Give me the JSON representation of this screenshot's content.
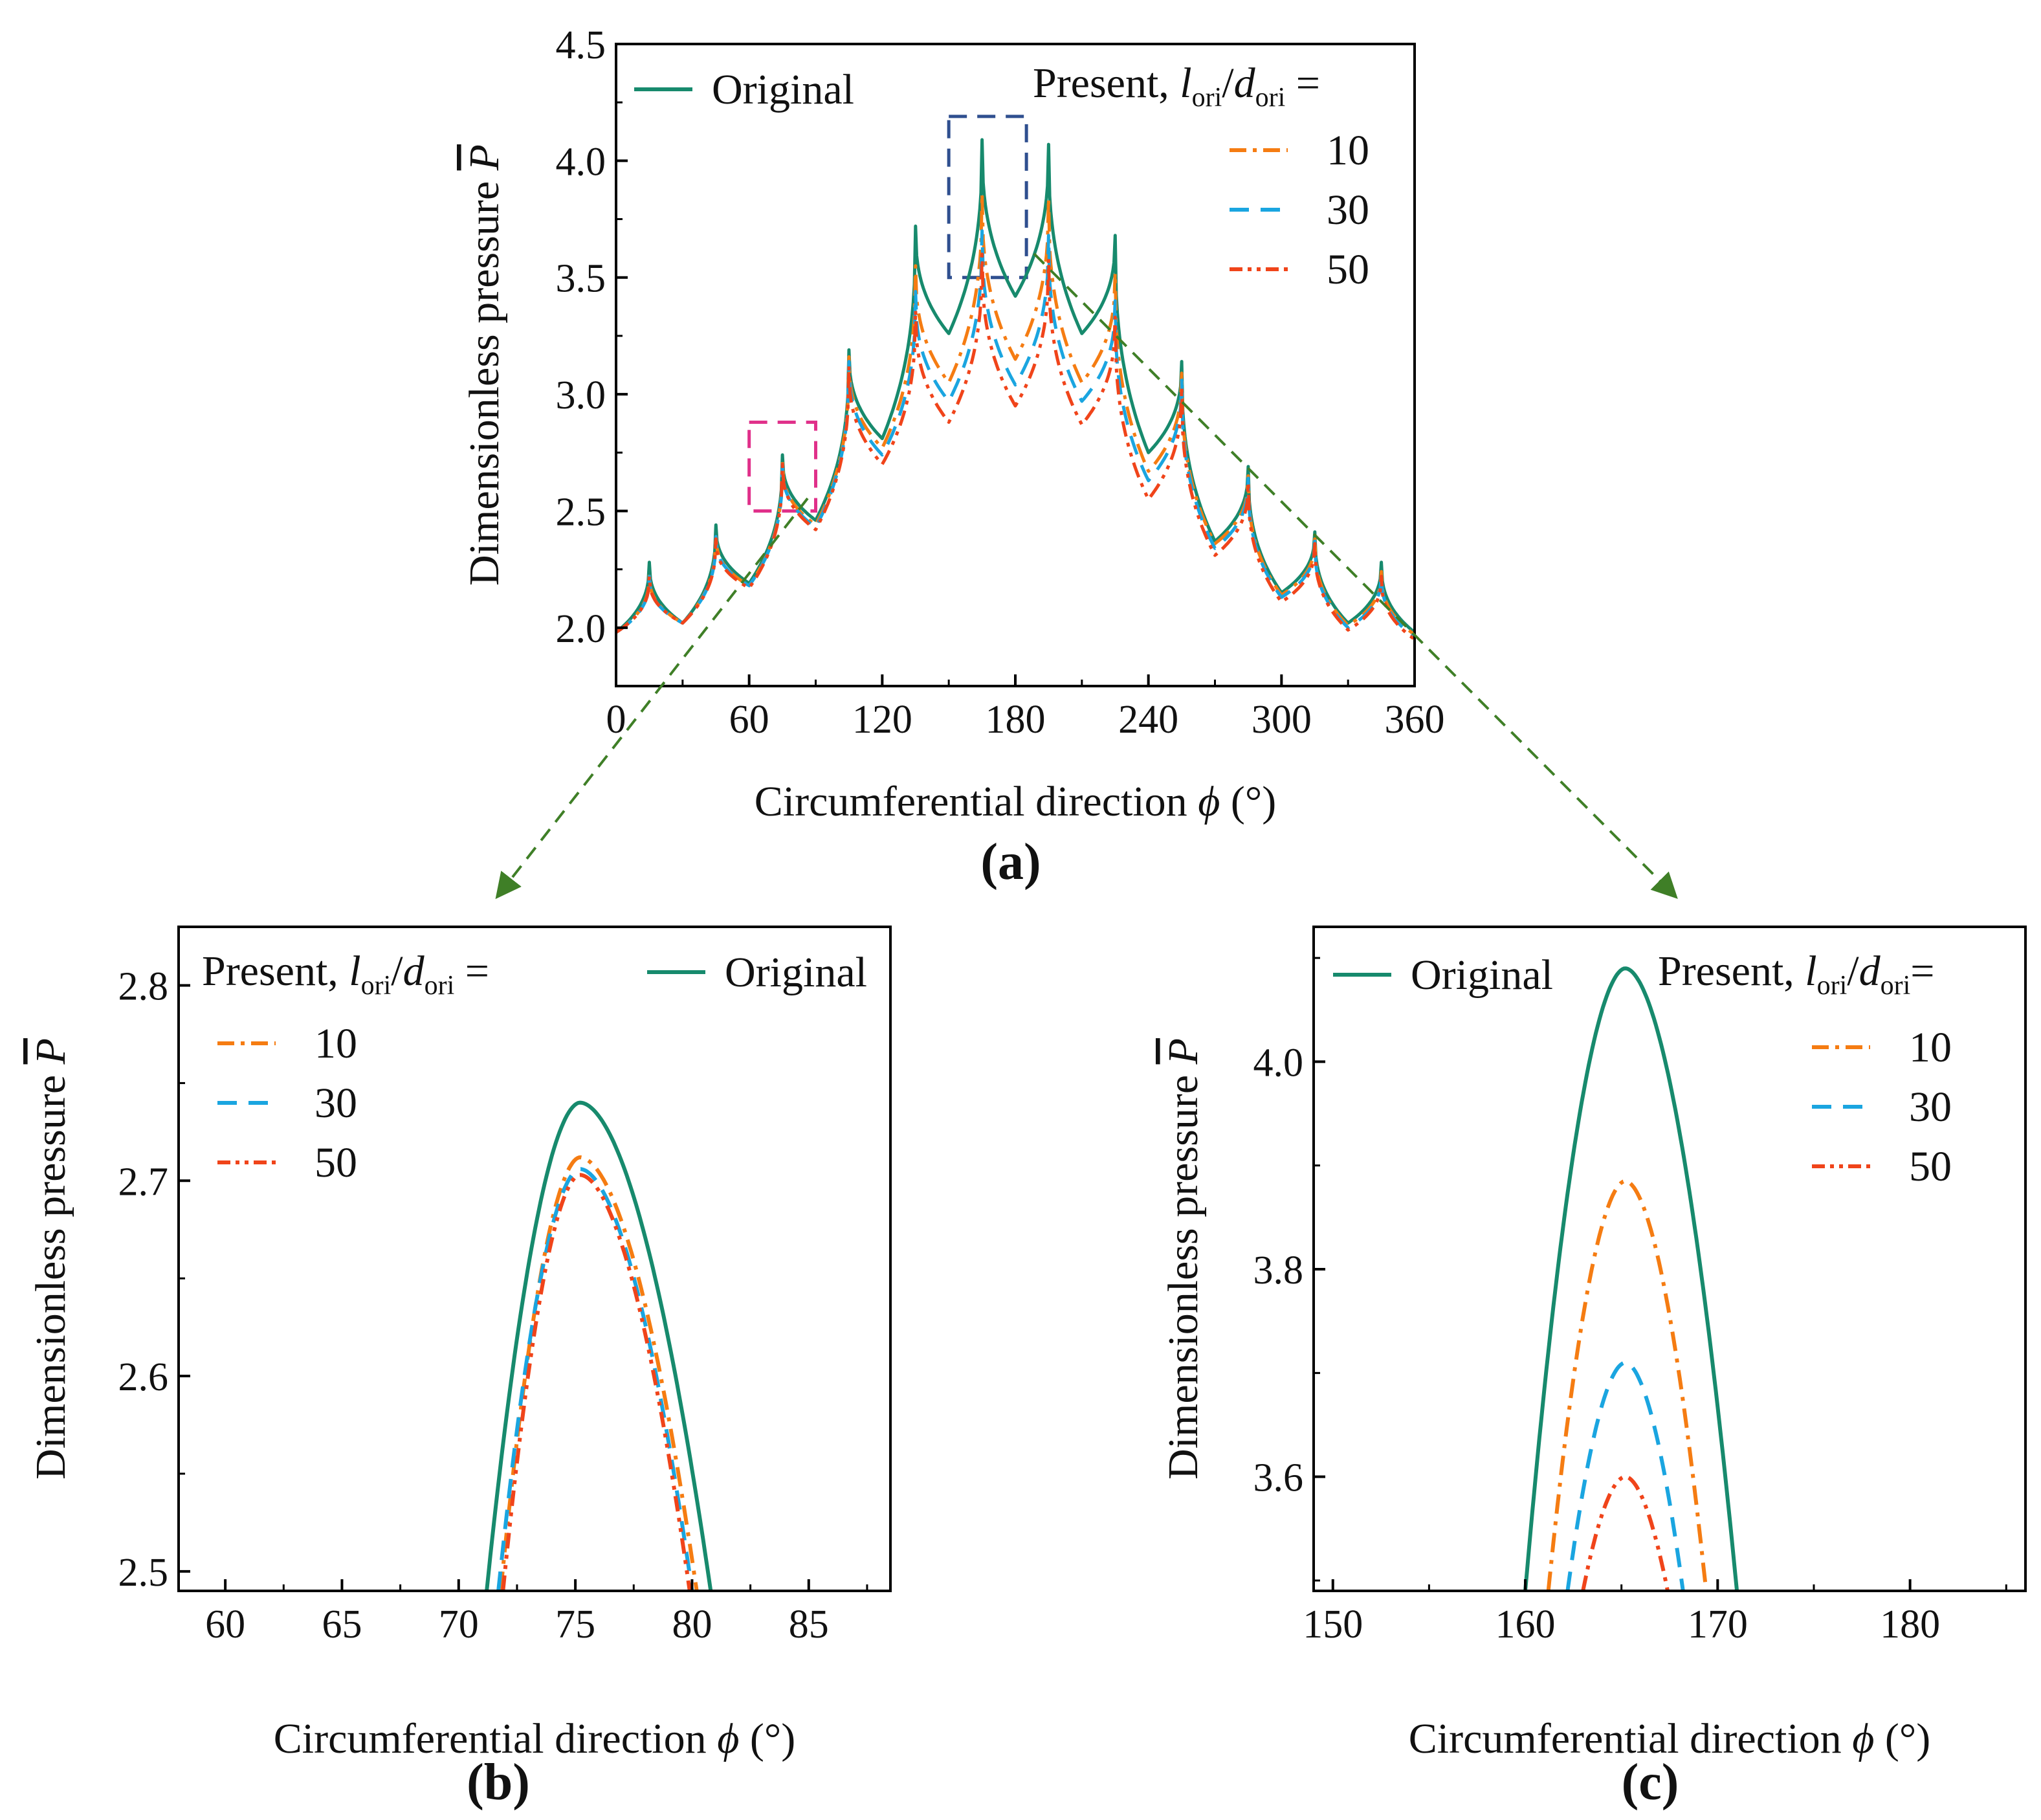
{
  "figure": {
    "panel_labels": [
      "(a)",
      "(b)",
      "(c)"
    ],
    "colors": {
      "original": "#178a6d",
      "l10": "#f57c12",
      "l30": "#1aa5e0",
      "l50": "#f0441a",
      "zoom_box_b": "#e0308a",
      "zoom_box_c": "#2f4f8f",
      "arrow": "#3f7f27",
      "axis": "#000000"
    }
  },
  "chart_data": [
    {
      "id": "a",
      "type": "line",
      "xlabel_prefix": "Circumferential direction",
      "xlabel_symbol": "ϕ",
      "xlabel_unit": "(°)",
      "ylabel": "Dimensionless pressure",
      "ylabel_symbol": "P",
      "xlim": [
        0,
        360
      ],
      "ylim": [
        1.75,
        4.5
      ],
      "xticks": [
        0,
        60,
        120,
        180,
        240,
        300,
        360
      ],
      "xtick_labels": [
        "0",
        "60",
        "120",
        "180",
        "240",
        "300",
        "360"
      ],
      "yticks": [
        2.0,
        2.5,
        3.0,
        3.5,
        4.0,
        4.5
      ],
      "ytick_labels": [
        "2.0",
        "2.5",
        "3.0",
        "3.5",
        "4.0",
        "4.5"
      ],
      "legend": {
        "original_label": "Original",
        "title_prefix": "Present, ",
        "title_l": "l",
        "title_sub1": "ori",
        "title_slash": "/",
        "title_d": "d",
        "title_sub2": "ori",
        "title_suffix": " =",
        "entries": [
          "10",
          "30",
          "50"
        ]
      },
      "zoom_boxes": [
        {
          "x": [
            60,
            90
          ],
          "y": [
            2.5,
            2.88
          ],
          "color": "#e0308a"
        },
        {
          "x": [
            150,
            185
          ],
          "y": [
            3.5,
            4.19
          ],
          "color": "#2f4f8f"
        }
      ],
      "peaks": [
        15,
        45,
        75,
        105,
        135,
        165,
        195,
        225,
        255,
        285,
        315,
        345
      ],
      "series": [
        {
          "key": "original",
          "color": "#178a6d",
          "dash": "solid",
          "peak_values": [
            2.28,
            2.44,
            2.74,
            3.19,
            3.72,
            4.09,
            4.07,
            3.68,
            3.14,
            2.69,
            2.41,
            2.28
          ],
          "trough_values": [
            2.02,
            2.19,
            2.46,
            2.81,
            3.26,
            3.42,
            3.26,
            2.75,
            2.37,
            2.15,
            2.02
          ]
        },
        {
          "key": "l10",
          "color": "#f57c12",
          "dash": "dashdot",
          "peak_values": [
            2.23,
            2.4,
            2.71,
            3.16,
            3.55,
            3.86,
            3.84,
            3.52,
            3.09,
            2.65,
            2.38,
            2.24
          ],
          "trough_values": [
            2.02,
            2.18,
            2.44,
            2.77,
            3.05,
            3.15,
            3.05,
            2.67,
            2.36,
            2.14,
            2.01
          ]
        },
        {
          "key": "l30",
          "color": "#1aa5e0",
          "dash": "dash",
          "peak_values": [
            2.22,
            2.39,
            2.7,
            3.14,
            3.44,
            3.7,
            3.68,
            3.4,
            3.06,
            2.64,
            2.37,
            2.23
          ],
          "trough_values": [
            2.02,
            2.18,
            2.43,
            2.74,
            2.97,
            3.04,
            2.97,
            2.63,
            2.34,
            2.13,
            2.0
          ]
        },
        {
          "key": "l50",
          "color": "#f0441a",
          "dash": "dashdotdot",
          "peak_values": [
            2.22,
            2.38,
            2.7,
            3.12,
            3.36,
            3.6,
            3.58,
            3.33,
            3.03,
            2.62,
            2.36,
            2.22
          ],
          "trough_values": [
            2.02,
            2.17,
            2.42,
            2.7,
            2.88,
            2.95,
            2.87,
            2.55,
            2.31,
            2.11,
            1.99
          ]
        }
      ]
    },
    {
      "id": "b",
      "type": "line",
      "xlabel_prefix": "Circumferential direction",
      "xlabel_symbol": "ϕ",
      "xlabel_unit": "(°)",
      "ylabel": "Dimensionless pressure",
      "ylabel_symbol": "P",
      "xlim": [
        58,
        88.5
      ],
      "ylim": [
        2.49,
        2.83
      ],
      "xticks": [
        60,
        65,
        70,
        75,
        80,
        85
      ],
      "xtick_labels": [
        "60",
        "65",
        "70",
        "75",
        "80",
        "85"
      ],
      "yticks": [
        2.5,
        2.6,
        2.7,
        2.8
      ],
      "ytick_labels": [
        "2.5",
        "2.6",
        "2.7",
        "2.8"
      ],
      "legend": {
        "original_label": "Original",
        "title_prefix": "Present, ",
        "title_l": "l",
        "title_sub1": "ori",
        "title_slash": "/",
        "title_d": "d",
        "title_sub2": "ori",
        "title_suffix": " =",
        "entries": [
          "10",
          "30",
          "50"
        ]
      },
      "series": [
        {
          "key": "original",
          "color": "#178a6d",
          "dash": "solid",
          "peak_x": 75.2,
          "peak_y": 2.74,
          "base_x": [
            71.2,
            80.8
          ],
          "base_y": 2.49
        },
        {
          "key": "l10",
          "color": "#f57c12",
          "dash": "dashdot",
          "peak_x": 75.2,
          "peak_y": 2.712,
          "base_x": [
            71.8,
            80.2
          ],
          "base_y": 2.49
        },
        {
          "key": "l30",
          "color": "#1aa5e0",
          "dash": "dash",
          "peak_x": 75.2,
          "peak_y": 2.706,
          "base_x": [
            71.7,
            80.0
          ],
          "base_y": 2.49
        },
        {
          "key": "l50",
          "color": "#f0441a",
          "dash": "dashdotdot",
          "peak_x": 75.2,
          "peak_y": 2.703,
          "base_x": [
            71.9,
            79.9
          ],
          "base_y": 2.49
        }
      ]
    },
    {
      "id": "c",
      "type": "line",
      "xlabel_prefix": "Circumferential direction",
      "xlabel_symbol": "ϕ",
      "xlabel_unit": "(°)",
      "ylabel": "Dimensionless pressure",
      "ylabel_symbol": "P",
      "xlim": [
        149,
        186
      ],
      "ylim": [
        3.49,
        4.13
      ],
      "xticks": [
        150,
        160,
        170,
        180
      ],
      "xtick_labels": [
        "150",
        "160",
        "170",
        "180"
      ],
      "yticks": [
        3.6,
        3.8,
        4.0
      ],
      "ytick_labels": [
        "3.6",
        "3.8",
        "4.0"
      ],
      "legend": {
        "original_label": "Original",
        "title_prefix": "Present, ",
        "title_l": "l",
        "title_sub1": "ori",
        "title_slash": "/",
        "title_d": "d",
        "title_sub2": "ori",
        "title_suffix": "=",
        "entries": [
          "10",
          "30",
          "50"
        ]
      },
      "series": [
        {
          "key": "original",
          "color": "#178a6d",
          "dash": "solid",
          "peak_x": 165.2,
          "peak_y": 4.09,
          "base_x": [
            160.0,
            171.0
          ],
          "base_y": 3.49
        },
        {
          "key": "l10",
          "color": "#f57c12",
          "dash": "dashdot",
          "peak_x": 165.2,
          "peak_y": 3.885,
          "base_x": [
            161.2,
            169.4
          ],
          "base_y": 3.49
        },
        {
          "key": "l30",
          "color": "#1aa5e0",
          "dash": "dash",
          "peak_x": 165.2,
          "peak_y": 3.71,
          "base_x": [
            162.2,
            168.2
          ],
          "base_y": 3.49
        },
        {
          "key": "l50",
          "color": "#f0441a",
          "dash": "dashdotdot",
          "peak_x": 165.2,
          "peak_y": 3.6,
          "base_x": [
            163.0,
            167.4
          ],
          "base_y": 3.49
        }
      ]
    }
  ]
}
